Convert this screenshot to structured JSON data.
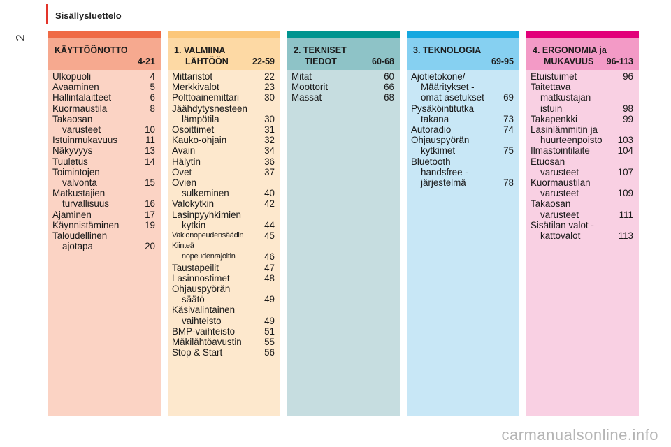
{
  "header": {
    "section": "Sisällysluettelo",
    "page_number": "2"
  },
  "watermark": "carmanualsonline.info",
  "columns": [
    {
      "stripe": "#ef6a45",
      "head_bg": "#f6a98f",
      "body_bg": "#fbd3c4",
      "title1": "KÄYTTÖÖNOTTO",
      "title2": "",
      "pages": "4-21",
      "entries": [
        {
          "l1": "Ulkopuoli",
          "l2": "",
          "p": "4"
        },
        {
          "l1": "Avaaminen",
          "l2": "",
          "p": "5"
        },
        {
          "l1": "Hallintalaitteet",
          "l2": "",
          "p": "6"
        },
        {
          "l1": "Kuormaustila",
          "l2": "",
          "p": "8"
        },
        {
          "l1": "Takaosan",
          "l2": "varusteet",
          "p": "10"
        },
        {
          "l1": "Istuinmukavuus",
          "l2": "",
          "p": "11"
        },
        {
          "l1": "Näkyvyys",
          "l2": "",
          "p": "13"
        },
        {
          "l1": "Tuuletus",
          "l2": "",
          "p": "14"
        },
        {
          "l1": "Toimintojen",
          "l2": "valvonta",
          "p": "15"
        },
        {
          "l1": "Matkustajien",
          "l2": "turvallisuus",
          "p": "16"
        },
        {
          "l1": "Ajaminen",
          "l2": "",
          "p": "17"
        },
        {
          "l1": "Käynnistäminen",
          "l2": "",
          "p": "19"
        },
        {
          "l1": "Taloudellinen",
          "l2": "ajotapa",
          "p": "20"
        }
      ]
    },
    {
      "stripe": "#fcc77a",
      "head_bg": "#fdd9a4",
      "body_bg": "#fde8cd",
      "title1": "1. VALMIINA",
      "title2": "LÄHTÖÖN",
      "pages": "22-59",
      "entries": [
        {
          "l1": "Mittaristot",
          "l2": "",
          "p": "22"
        },
        {
          "l1": "Merkkivalot",
          "l2": "",
          "p": "23"
        },
        {
          "l1": "Polttoainemittari",
          "l2": "",
          "p": "30"
        },
        {
          "l1": "Jäähdytysnesteen",
          "l2": "lämpötila",
          "p": "30"
        },
        {
          "l1": "Osoittimet",
          "l2": "",
          "p": "31"
        },
        {
          "l1": "Kauko-ohjain",
          "l2": "",
          "p": "32"
        },
        {
          "l1": "Avain",
          "l2": "",
          "p": "34"
        },
        {
          "l1": "Hälytin",
          "l2": "",
          "p": "36"
        },
        {
          "l1": "Ovet",
          "l2": "",
          "p": "37"
        },
        {
          "l1": "Ovien",
          "l2": "sulkeminen",
          "p": "40"
        },
        {
          "l1": "Valokytkin",
          "l2": "",
          "p": "42"
        },
        {
          "l1": "Lasinpyyhkimien",
          "l2": "kytkin",
          "p": "44"
        },
        {
          "l1": "Vakionopeudensäädin",
          "l2": "",
          "p": "45",
          "small": true
        },
        {
          "l1": "Kiinteä",
          "l2": "nopeudenrajoitin",
          "p": "46",
          "small": true
        },
        {
          "l1": "Taustapeilit",
          "l2": "",
          "p": "47"
        },
        {
          "l1": "Lasinnostimet",
          "l2": "",
          "p": "48"
        },
        {
          "l1": "Ohjauspyörän",
          "l2": "säätö",
          "p": "49"
        },
        {
          "l1": "Käsivalintainen",
          "l2": "vaihteisto",
          "p": "49"
        },
        {
          "l1": "BMP-vaihteisto",
          "l2": "",
          "p": "51"
        },
        {
          "l1": "Mäkilähtöavustin",
          "l2": "",
          "p": "55"
        },
        {
          "l1": "Stop & Start",
          "l2": "",
          "p": "56"
        }
      ]
    },
    {
      "stripe": "#00948f",
      "head_bg": "#8ec3c7",
      "body_bg": "#c6dde0",
      "title1": "2. TEKNISET",
      "title2": "TIEDOT",
      "pages": "60-68",
      "entries": [
        {
          "l1": "Mitat",
          "l2": "",
          "p": "60"
        },
        {
          "l1": "Moottorit",
          "l2": "",
          "p": "66"
        },
        {
          "l1": "Massat",
          "l2": "",
          "p": "68"
        }
      ]
    },
    {
      "stripe": "#15a8e0",
      "head_bg": "#86d0f1",
      "body_bg": "#c8e7f6",
      "title1": "3. TEKNOLOGIA",
      "title2": "",
      "pages": "69-95",
      "entries": [
        {
          "l1": "Ajotietokone/",
          "l2": "Määritykset -",
          "l3": "omat asetukset",
          "p": "69"
        },
        {
          "l1": "Pysäköintitutka",
          "l2": "takana",
          "p": "73"
        },
        {
          "l1": "Autoradio",
          "l2": "",
          "p": "74"
        },
        {
          "l1": "Ohjauspyörän",
          "l2": "kytkimet",
          "p": "75"
        },
        {
          "l1": "Bluetooth",
          "l2": "handsfree -",
          "l3": "järjestelmä",
          "p": "78"
        }
      ]
    },
    {
      "stripe": "#e2007a",
      "head_bg": "#f39ac6",
      "body_bg": "#f9d0e3",
      "title1": "4. ERGONOMIA ja",
      "title2": "MUKAVUUS",
      "pages": "96-113",
      "entries": [
        {
          "l1": "Etuistuimet",
          "l2": "",
          "p": "96"
        },
        {
          "l1": "Taitettava",
          "l2": "matkustajan",
          "l3": "istuin",
          "p": "98"
        },
        {
          "l1": "Takapenkki",
          "l2": "",
          "p": "99"
        },
        {
          "l1": "Lasinlämmitin ja",
          "l2": "huurteenpoisto",
          "p": "103"
        },
        {
          "l1": "Ilmastointilaite",
          "l2": "",
          "p": "104"
        },
        {
          "l1": "Etuosan",
          "l2": "varusteet",
          "p": "107"
        },
        {
          "l1": "Kuormaustilan",
          "l2": "varusteet",
          "p": "109"
        },
        {
          "l1": "Takaosan",
          "l2": "varusteet",
          "p": "111"
        },
        {
          "l1": "Sisätilan valot -",
          "l2": "kattovalot",
          "p": "113"
        }
      ]
    }
  ]
}
